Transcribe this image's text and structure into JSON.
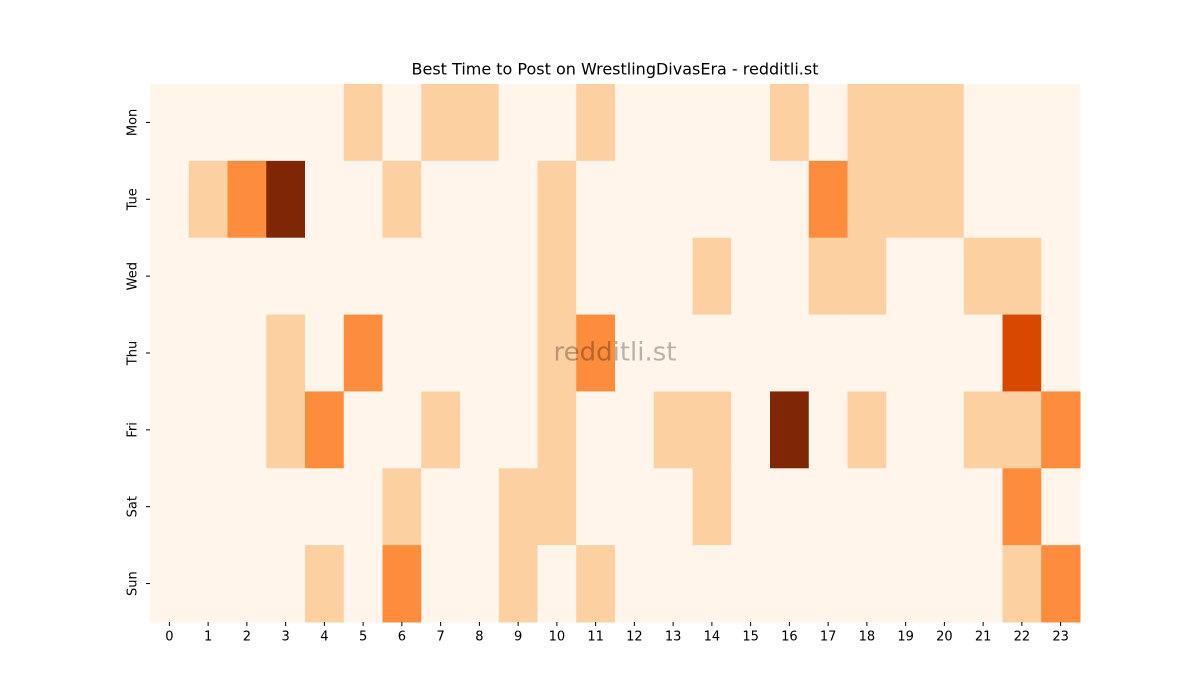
{
  "chart_data": {
    "type": "heatmap",
    "title": "Best Time to Post on WrestlingDivasEra - redditli.st",
    "annotation": "redditli.st",
    "x": [
      0,
      1,
      2,
      3,
      4,
      5,
      6,
      7,
      8,
      9,
      10,
      11,
      12,
      13,
      14,
      15,
      16,
      17,
      18,
      19,
      20,
      21,
      22,
      23
    ],
    "y": [
      "Mon",
      "Tue",
      "Wed",
      "Thu",
      "Fri",
      "Sat",
      "Sun"
    ],
    "values": [
      [
        0,
        0,
        0,
        0,
        0,
        1,
        0,
        1,
        1,
        0,
        0,
        1,
        0,
        0,
        0,
        0,
        1,
        0,
        1,
        1,
        1,
        0,
        0,
        0
      ],
      [
        0,
        1,
        2,
        4,
        0,
        0,
        1,
        0,
        0,
        0,
        1,
        0,
        0,
        0,
        0,
        0,
        0,
        2,
        1,
        1,
        1,
        0,
        0,
        0
      ],
      [
        0,
        0,
        0,
        0,
        0,
        0,
        0,
        0,
        0,
        0,
        1,
        0,
        0,
        0,
        1,
        0,
        0,
        1,
        1,
        0,
        0,
        1,
        1,
        0
      ],
      [
        0,
        0,
        0,
        1,
        0,
        2,
        0,
        0,
        0,
        0,
        1,
        2,
        0,
        0,
        0,
        0,
        0,
        0,
        0,
        0,
        0,
        0,
        3,
        0
      ],
      [
        0,
        0,
        0,
        1,
        2,
        0,
        0,
        1,
        0,
        0,
        1,
        0,
        0,
        1,
        1,
        0,
        4,
        0,
        1,
        0,
        0,
        1,
        1,
        2
      ],
      [
        0,
        0,
        0,
        0,
        0,
        0,
        1,
        0,
        0,
        1,
        1,
        0,
        0,
        0,
        1,
        0,
        0,
        0,
        0,
        0,
        0,
        0,
        2,
        0
      ],
      [
        0,
        0,
        0,
        0,
        1,
        0,
        2,
        0,
        0,
        1,
        0,
        1,
        0,
        0,
        0,
        0,
        0,
        0,
        0,
        0,
        0,
        0,
        1,
        2
      ]
    ],
    "vmin": 0,
    "vmax": 4,
    "colormap": [
      "#fff5eb",
      "#fdd0a2",
      "#fd8d3c",
      "#d94801",
      "#7f2704"
    ]
  }
}
